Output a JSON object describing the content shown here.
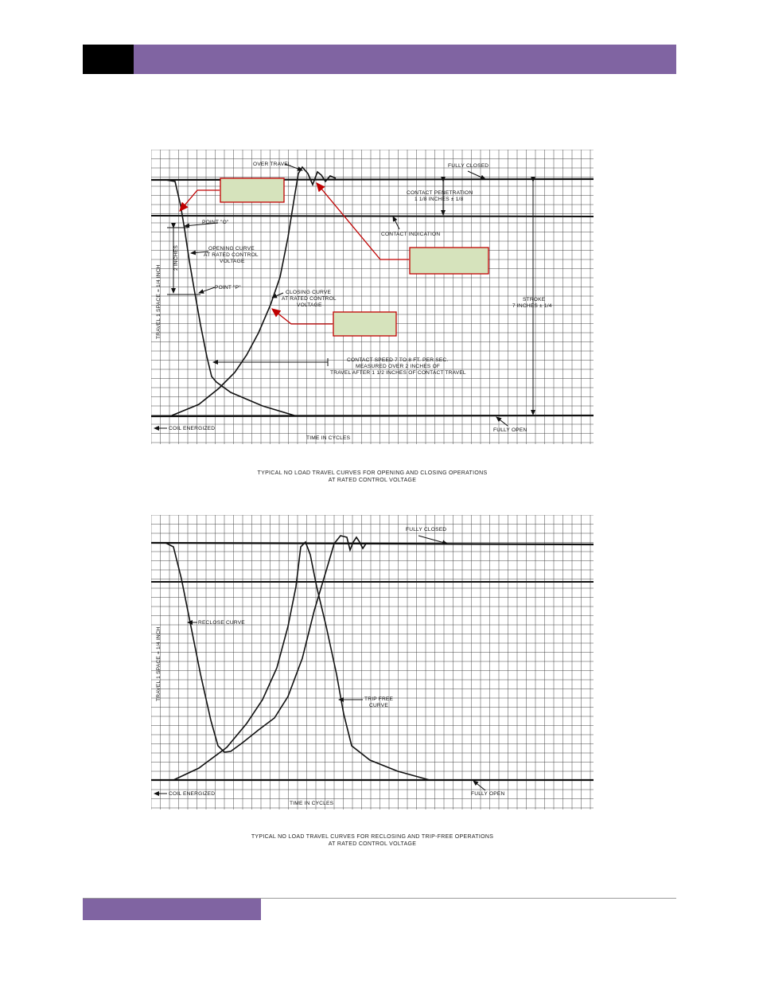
{
  "page": {
    "header_block_color": "#000000",
    "header_bar_color": "#8064a2",
    "footer_block_color": "#8064a2",
    "footer_line_color": "#9a9a9a"
  },
  "figure1": {
    "labels": {
      "over_travel": "OVER TRAVEL",
      "fully_closed": "FULLY CLOSED",
      "contact_penetration": "CONTACT PENETRATION",
      "penetration_value": "1 1/8 INCHES ± 1/8",
      "point_o": "POINT \"O\"",
      "contact_indication": "CONTACT INDICATION",
      "opening_curve_1": "OPENING CURVE",
      "opening_curve_2": "AT RATED CONTROL",
      "opening_curve_3": "VOLTAGE",
      "two_inches": "2 INCHES",
      "point_p": "POINT \"P\"",
      "closing_curve_1": "CLOSING CURVE",
      "closing_curve_2": "AT RATED CONTROL",
      "closing_curve_3": "VOLTAGE",
      "stroke_1": "STROKE",
      "stroke_2": "7 INCHES ± 1/4",
      "travel_axis": "TRAVEL 1 SPACE = 1/4 INCH",
      "speed_1": "CONTACT SPEED 7 TO 8 FT. PER SEC.",
      "speed_2": "MEASURED OVER 2 INCHES OF",
      "speed_3": "TRAVEL AFTER 1 1/2 INCHES OF CONTACT TRAVEL",
      "coil_energized": "COIL ENERGIZED",
      "time_in_cycles": "TIME IN CYCLES",
      "fully_open": "FULLY OPEN"
    },
    "callout_fill": "#d6e3bc",
    "callout_border": "#c00000",
    "caption_line1": "TYPICAL NO LOAD TRAVEL CURVES FOR OPENING AND CLOSING OPERATIONS",
    "caption_line2": "AT RATED CONTROL VOLTAGE"
  },
  "figure2": {
    "labels": {
      "fully_closed": "FULLY CLOSED",
      "reclose_curve": "RECLOSE CURVE",
      "travel_axis": "TRAVEL 1 SPACE = 1/4 INCH",
      "trip_free_1": "TRIP FREE",
      "trip_free_2": "CURVE",
      "coil_energized": "COIL ENERGIZED",
      "time_in_cycles": "TIME IN CYCLES",
      "fully_open": "FULLY OPEN"
    },
    "caption_line1": "TYPICAL NO LOAD TRAVEL CURVES FOR RECLOSING AND TRIP-FREE OPERATIONS",
    "caption_line2": "AT RATED CONTROL VOLTAGE"
  }
}
